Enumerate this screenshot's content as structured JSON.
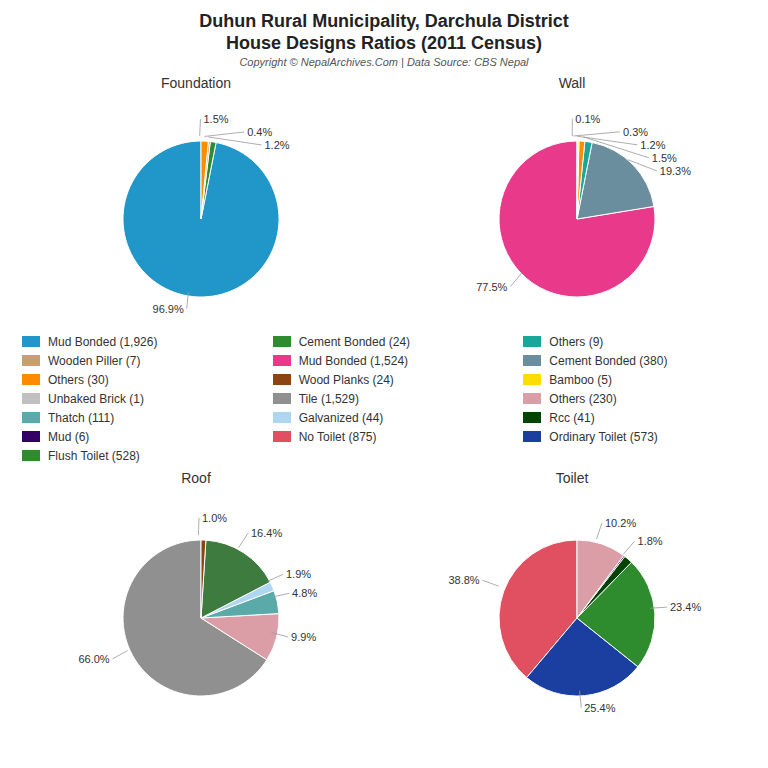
{
  "title": "Duhun Rural Municipality, Darchula District",
  "subtitle": "House Designs Ratios (2011 Census)",
  "annotations": [
    "Copyright © NepalArchives.Com | Data Source: CBS Nepal"
  ],
  "legend_columns": [
    [
      {
        "name": "Mud Bonded (1,926)",
        "color": "#2196C8"
      },
      {
        "name": "Wooden Piller (7)",
        "color": "#C8A070"
      },
      {
        "name": "Others (30)",
        "color": "#FF8C00"
      },
      {
        "name": "Unbaked Brick (1)",
        "color": "#C0C0C0"
      },
      {
        "name": "Thatch (111)",
        "color": "#5BAAAA"
      },
      {
        "name": "Mud (6)",
        "color": "#330066"
      },
      {
        "name": "Flush Toilet (528)",
        "color": "#2E8B2E"
      }
    ],
    [
      {
        "name": "Cement Bonded (24)",
        "color": "#2E8B2E"
      },
      {
        "name": "Mud Bonded (1,524)",
        "color": "#E8398A"
      },
      {
        "name": "Wood Planks (24)",
        "color": "#8B4513"
      },
      {
        "name": "Tile (1,529)",
        "color": "#909090"
      },
      {
        "name": "Galvanized (44)",
        "color": "#AED6F1"
      },
      {
        "name": "No Toilet (875)",
        "color": "#E05060"
      }
    ],
    [
      {
        "name": "Others (9)",
        "color": "#17A89A"
      },
      {
        "name": "Cement Bonded (380)",
        "color": "#6B8E9F"
      },
      {
        "name": "Bamboo (5)",
        "color": "#FFDD00"
      },
      {
        "name": "Others (230)",
        "color": "#DB9EA6"
      },
      {
        "name": "Rcc (41)",
        "color": "#004400"
      },
      {
        "name": "Ordinary Toilet (573)",
        "color": "#1B3FA0"
      }
    ]
  ],
  "chart_data": [
    {
      "type": "pie",
      "title": "Foundation",
      "values": [
        96.9,
        1.2,
        0.4,
        1.5
      ],
      "value_labels": [
        "96.9%",
        "1.2%",
        "0.4%",
        "1.5%"
      ],
      "colors": [
        "#2196C8",
        "#2E8B2E",
        "#C8A070",
        "#FF8C00"
      ],
      "data_labels": true
    },
    {
      "type": "pie",
      "title": "Wall",
      "values": [
        77.5,
        19.3,
        1.5,
        1.2,
        0.3,
        0.1
      ],
      "value_labels": [
        "77.5%",
        "19.3%",
        "1.5%",
        "1.2%",
        "0.3%",
        "0.1%"
      ],
      "colors": [
        "#E8398A",
        "#6B8E9F",
        "#17A89A",
        "#FF8C00",
        "#FFDD00",
        "#8B6914"
      ],
      "data_labels": true
    },
    {
      "type": "pie",
      "title": "Roof",
      "values": [
        66.0,
        9.9,
        4.8,
        1.9,
        16.4,
        1.0
      ],
      "value_labels": [
        "66.0%",
        "9.9%",
        "4.8%",
        "1.9%",
        "16.4%",
        "1.0%"
      ],
      "colors": [
        "#909090",
        "#DB9EA6",
        "#5BAAAA",
        "#AED6F1",
        "#3E7B3E",
        "#8B4513"
      ],
      "data_labels": true
    },
    {
      "type": "pie",
      "title": "Toilet",
      "values": [
        38.8,
        25.4,
        23.4,
        1.8,
        0.3,
        10.2
      ],
      "value_labels": [
        "38.8%",
        "25.4%",
        "23.4%",
        "1.8%",
        null,
        "10.2%"
      ],
      "colors": [
        "#E05060",
        "#1B3FA0",
        "#2E8B2E",
        "#004400",
        "#330066",
        "#DB9EA6"
      ],
      "data_labels": true
    }
  ]
}
